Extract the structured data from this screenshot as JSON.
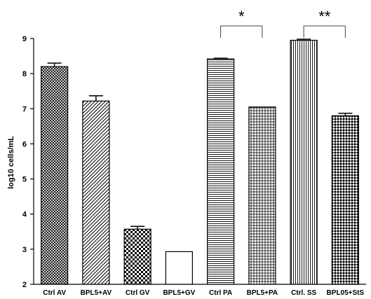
{
  "chart_data": {
    "type": "bar",
    "title": "",
    "xlabel": "",
    "ylabel": "log10 cells/mL",
    "ylim": [
      2,
      9
    ],
    "yticks": [
      2,
      3,
      4,
      5,
      6,
      7,
      8,
      9
    ],
    "ytick_labels": [
      "2",
      "3",
      "4",
      "5",
      "6",
      "7",
      "8",
      "9"
    ],
    "grid": false,
    "legend": "none",
    "categories": [
      "Ctrl AV",
      "BPL5+AV",
      "Ctrl GV",
      "BPL5+GV",
      "Ctrl PA",
      "BPL5+PA",
      "Ctrl. SS",
      "BPL05+StS"
    ],
    "values": [
      8.2,
      7.22,
      3.57,
      2.93,
      8.42,
      7.05,
      8.95,
      6.8
    ],
    "errors": [
      0.1,
      0.15,
      0.08,
      0,
      0.02,
      0,
      0.03,
      0.07
    ],
    "patterns": [
      "crosshatch-fine",
      "diagonal",
      "checker",
      "plain",
      "horizontal",
      "grid",
      "vertical",
      "diamond"
    ],
    "significance": [
      {
        "from": 4,
        "to": 5,
        "label": "*"
      },
      {
        "from": 6,
        "to": 7,
        "label": "**"
      }
    ],
    "colors": {
      "bar_fill": "#ffffff",
      "stroke": "#000000",
      "bracket": "#444444"
    }
  }
}
